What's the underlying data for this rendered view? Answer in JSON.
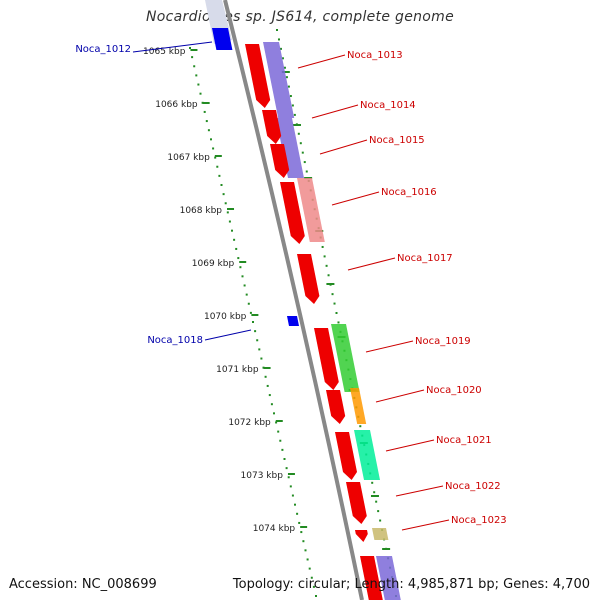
{
  "title": "Nocardioides sp. JS614, complete genome",
  "footer": {
    "accession": "Accession: NC_008699",
    "topology": "Topology: circular; Length: 4,985,871 bp; Genes: 4,700"
  },
  "scale": {
    "ticks": [
      "1065 kbp",
      "1066 kbp",
      "1067 kbp",
      "1068 kbp",
      "1069 kbp",
      "1070 kbp",
      "1071 kbp",
      "1072 kbp",
      "1073 kbp",
      "1074 kbp"
    ]
  },
  "colors": {
    "forward_label": "#cc0000",
    "reverse_label": "#0000aa",
    "cds": "#ee0000",
    "reverse_cds": "#0000ee",
    "backbone": "#888888",
    "scale_dots": "#228b22"
  },
  "genes": [
    {
      "id": "Noca_1012",
      "strand": "reverse"
    },
    {
      "id": "Noca_1013",
      "strand": "forward",
      "cog_color": "#7b68d8"
    },
    {
      "id": "Noca_1014",
      "strand": "forward",
      "cog_color": "#7b68d8"
    },
    {
      "id": "Noca_1015",
      "strand": "forward",
      "cog_color": "#7b68d8"
    },
    {
      "id": "Noca_1016",
      "strand": "forward",
      "cog_color": "#ee8a8a"
    },
    {
      "id": "Noca_1017",
      "strand": "forward"
    },
    {
      "id": "Noca_1018",
      "strand": "reverse"
    },
    {
      "id": "Noca_1019",
      "strand": "forward",
      "cog_color": "#33cc33"
    },
    {
      "id": "Noca_1020",
      "strand": "forward",
      "cog_color": "#ff9900"
    },
    {
      "id": "Noca_1021",
      "strand": "forward",
      "cog_color": "#00ee99"
    },
    {
      "id": "Noca_1022",
      "strand": "forward"
    },
    {
      "id": "Noca_1023",
      "strand": "forward",
      "cog_color": "#c8b86a"
    }
  ]
}
